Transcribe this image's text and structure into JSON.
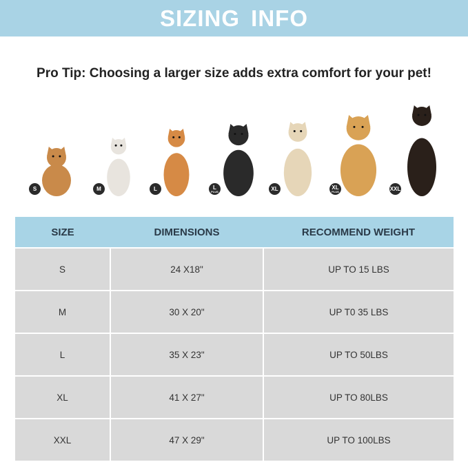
{
  "header": {
    "title": "SIZING INFO"
  },
  "tip": "Pro Tip: Choosing a larger size adds extra comfort for your pet!",
  "dogs": [
    {
      "size": "S",
      "sub": "",
      "color": "#c98a4a"
    },
    {
      "size": "M",
      "sub": "",
      "color": "#e8e4de"
    },
    {
      "size": "L",
      "sub": "",
      "color": "#d68a45"
    },
    {
      "size": "L",
      "sub": "PLUS",
      "color": "#2a2a2a"
    },
    {
      "size": "XL",
      "sub": "",
      "color": "#e6d6b8"
    },
    {
      "size": "XL",
      "sub": "PLUS",
      "color": "#d9a255"
    },
    {
      "size": "XXL",
      "sub": "",
      "color": "#2a201a"
    }
  ],
  "table": {
    "headers": [
      "SIZE",
      "DIMENSIONS",
      "RECOMMEND WEIGHT"
    ],
    "rows": [
      [
        "S",
        "24 X18\"",
        "UP TO 15 LBS"
      ],
      [
        "M",
        "30 X 20\"",
        "UP T0 35 LBS"
      ],
      [
        "L",
        "35 X 23\"",
        "UP TO 50LBS"
      ],
      [
        "XL",
        "41 X 27\"",
        "UP TO 80LBS"
      ],
      [
        "XXL",
        "47 X 29\"",
        "UP TO 100LBS"
      ]
    ]
  }
}
